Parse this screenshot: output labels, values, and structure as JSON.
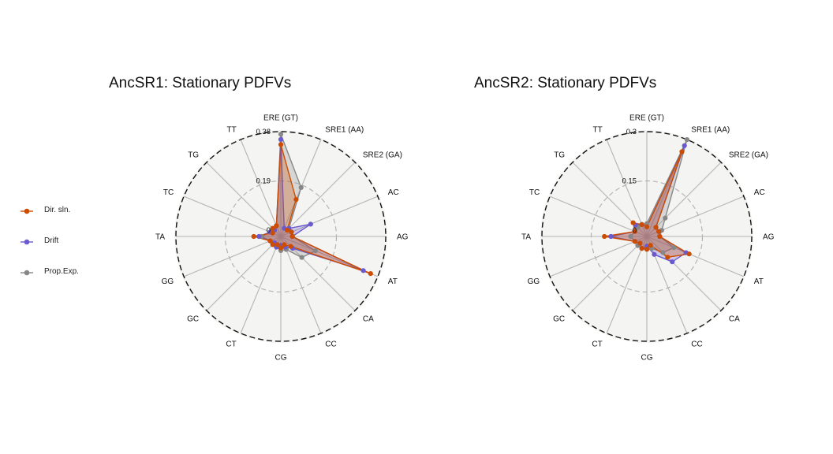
{
  "colors": {
    "panel_bg": "#f4f4f2",
    "grid": "#b4b4b4",
    "outer_ring": "#111111",
    "series": {
      "Dir. sln.": "#cc4c02",
      "Drift": "#6a5acd",
      "Prop.Exp.": "#878787"
    }
  },
  "legend": [
    "Dir. sln.",
    "Drift",
    "Prop.Exp."
  ],
  "chart_data": [
    {
      "type": "radar",
      "title": "AncSR1: Stationary PDFVs",
      "axes": [
        "ERE (GT)",
        "SRE1 (AA)",
        "SRE2 (GA)",
        "AC",
        "AG",
        "AT",
        "CA",
        "CC",
        "CG",
        "CT",
        "GC",
        "GG",
        "TA",
        "TC",
        "TG",
        "TT"
      ],
      "rmax": 0.38,
      "ticks": [
        "0",
        "0.19",
        "0.38"
      ],
      "tick_values": [
        0,
        0.19,
        0.38
      ],
      "grid_rings": [
        0.19
      ],
      "series": [
        {
          "name": "Dir. sln.",
          "values": [
            0.33,
            0.13,
            0.01,
            0.02,
            0.02,
            0.35,
            0.03,
            0.01,
            0.02,
            0.01,
            0.02,
            0.02,
            0.08,
            0.01,
            0.02,
            0.02
          ]
        },
        {
          "name": "Drift",
          "values": [
            0.35,
            0.01,
            0.02,
            0.1,
            0.02,
            0.32,
            0.04,
            0.02,
            0.01,
            0.02,
            0.01,
            0.02,
            0.06,
            0.02,
            0.01,
            0.02
          ]
        },
        {
          "name": "Prop.Exp.",
          "values": [
            0.37,
            0.18,
            0.02,
            0.02,
            0.02,
            0.12,
            0.09,
            0.03,
            0.03,
            0.02,
            0.02,
            0.02,
            0.05,
            0.02,
            0.02,
            0.02
          ]
        }
      ]
    },
    {
      "type": "radar",
      "title": "AncSR2: Stationary PDFVs",
      "axes": [
        "ERE (GT)",
        "SRE1 (AA)",
        "SRE2 (GA)",
        "AC",
        "AG",
        "AT",
        "CA",
        "CC",
        "CG",
        "CT",
        "GC",
        "GG",
        "TA",
        "TC",
        "TG",
        "TT"
      ],
      "rmax": 0.3,
      "ticks": [
        "0",
        "0.15",
        "0.3"
      ],
      "tick_values": [
        0,
        0.15,
        0.3
      ],
      "grid_rings": [
        0.15
      ],
      "series": [
        {
          "name": "Dir. sln.",
          "values": [
            0.01,
            0.26,
            0.02,
            0.02,
            0.02,
            0.12,
            0.07,
            0.01,
            0.02,
            0.02,
            0.01,
            0.02,
            0.11,
            0.02,
            0.04,
            0.02
          ]
        },
        {
          "name": "Drift",
          "values": [
            0.01,
            0.28,
            0.02,
            0.02,
            0.02,
            0.11,
            0.09,
            0.04,
            0.01,
            0.02,
            0.01,
            0.02,
            0.09,
            0.02,
            0.03,
            0.02
          ]
        },
        {
          "name": "Prop.Exp.",
          "values": [
            0.02,
            0.3,
            0.06,
            0.03,
            0.02,
            0.07,
            0.05,
            0.02,
            0.02,
            0.02,
            0.02,
            0.02,
            0.03,
            0.02,
            0.02,
            0.02
          ]
        }
      ]
    }
  ]
}
